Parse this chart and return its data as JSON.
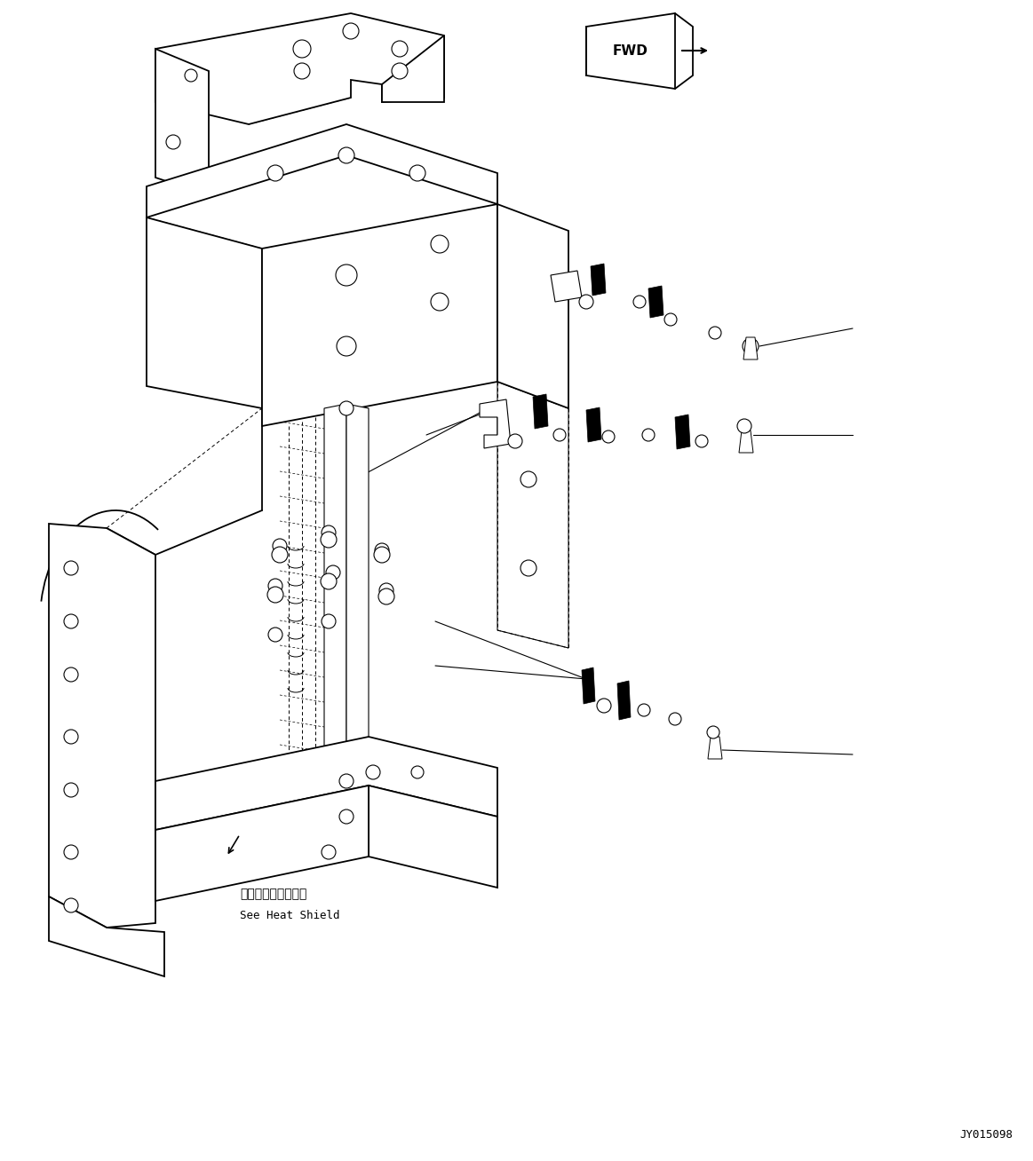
{
  "bg_color": "#ffffff",
  "line_color": "#000000",
  "part_number": "JY015098",
  "annotation_jp": "ヒートシールド参照",
  "annotation_en": "See Heat Shield",
  "fwd_label": "FWD",
  "figure_width": 11.63,
  "figure_height": 13.08,
  "dpi": 100
}
